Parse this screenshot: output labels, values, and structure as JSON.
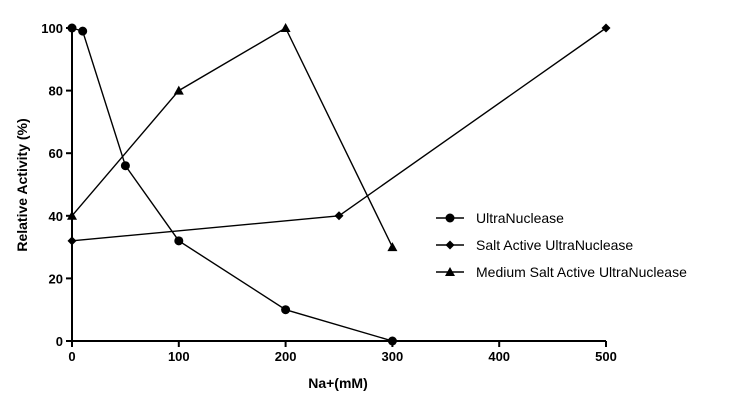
{
  "chart_data": {
    "type": "line",
    "title": "",
    "xlabel": "Na+(mM)",
    "ylabel": "Relative Activity (%)",
    "xlim": [
      0,
      500
    ],
    "ylim": [
      0,
      100
    ],
    "xticks": [
      0,
      100,
      200,
      300,
      400,
      500
    ],
    "yticks": [
      0,
      20,
      40,
      60,
      80,
      100
    ],
    "grid": false,
    "legend_position": "right",
    "series": [
      {
        "name": "UltraNuclease",
        "marker": "circle",
        "x": [
          0,
          10,
          50,
          100,
          200,
          300
        ],
        "y": [
          100,
          99,
          56,
          32,
          10,
          0
        ]
      },
      {
        "name": "Salt Active UltraNuclease",
        "marker": "diamond",
        "x": [
          0,
          250,
          500
        ],
        "y": [
          32,
          40,
          100
        ]
      },
      {
        "name": "Medium Salt Active UltraNuclease",
        "marker": "triangle",
        "x": [
          0,
          100,
          200,
          300
        ],
        "y": [
          40,
          80,
          100,
          30
        ]
      }
    ]
  }
}
